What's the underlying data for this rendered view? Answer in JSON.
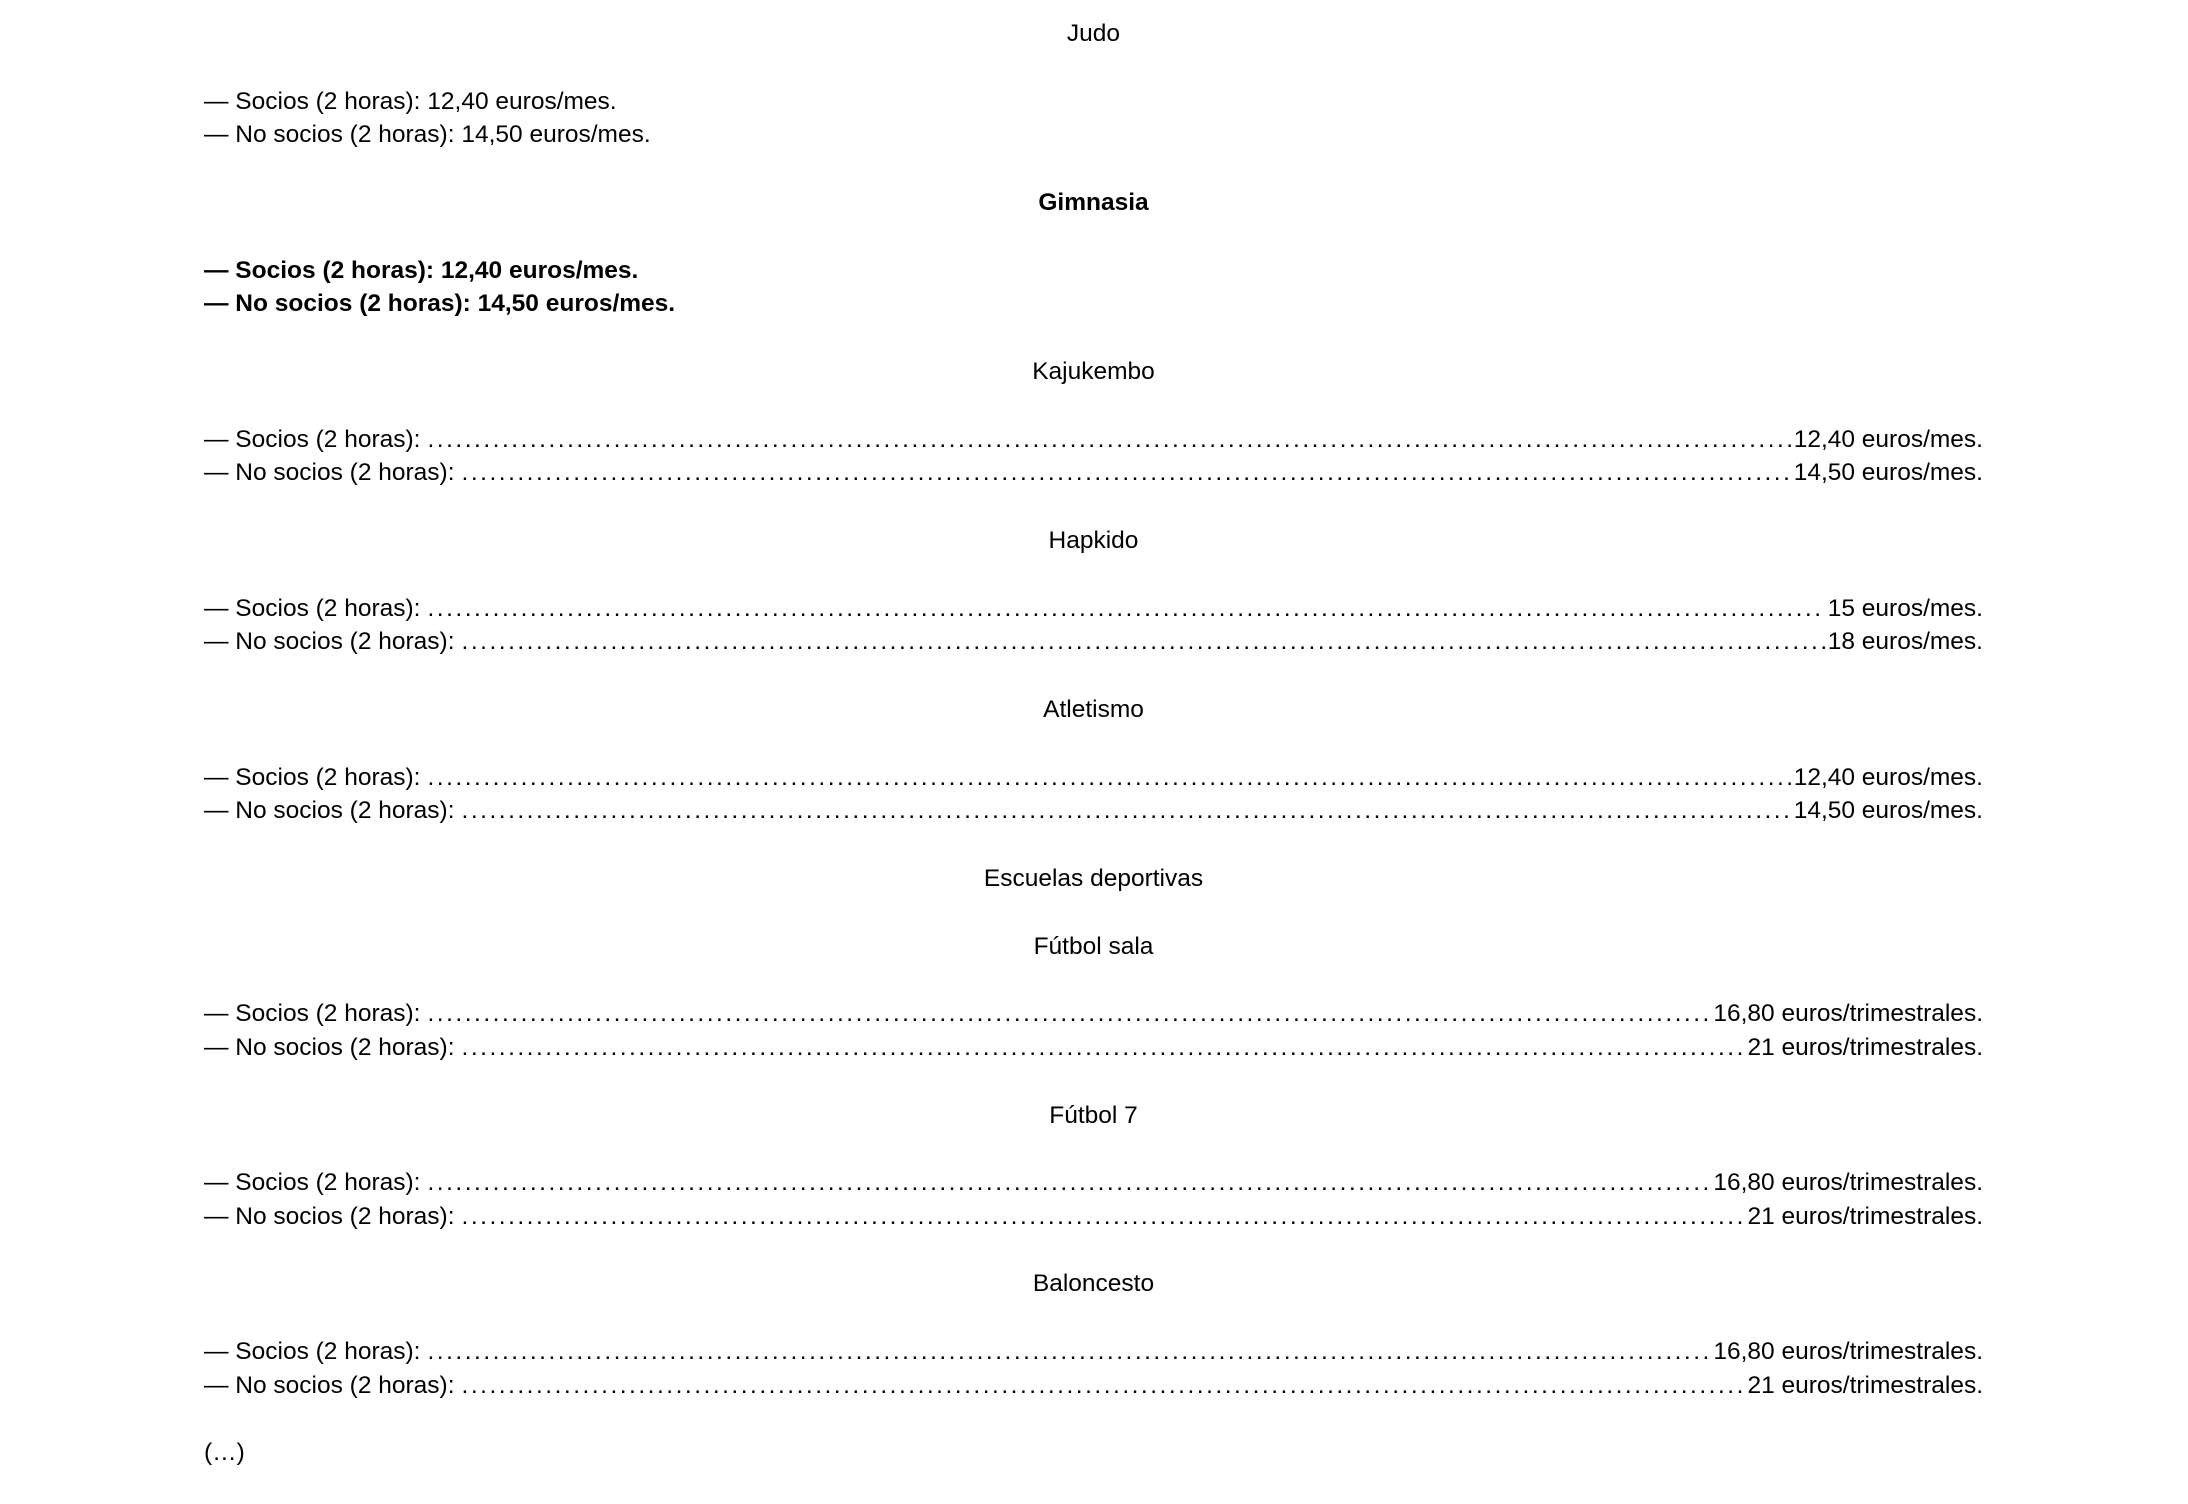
{
  "page": {
    "background_color": "#ffffff",
    "text_color": "#000000"
  },
  "document": {
    "footer_ellipsis": "(…)",
    "sections": [
      {
        "title": "Judo",
        "bold": false,
        "items": [
          {
            "text": "— Socios (2 horas): 12,40 euros/mes."
          },
          {
            "text": "— No socios (2 horas): 14,50 euros/mes."
          }
        ]
      },
      {
        "title": "Gimnasia",
        "bold": true,
        "items": [
          {
            "text": "— Socios (2 horas): 12,40 euros/mes."
          },
          {
            "text": "— No socios (2 horas): 14,50 euros/mes."
          }
        ]
      },
      {
        "title": "Kajukembo",
        "bold": false,
        "items": [
          {
            "label": "— Socios (2 horas):",
            "value": "12,40 euros/mes."
          },
          {
            "label": "— No socios (2 horas):",
            "value": "14,50 euros/mes."
          }
        ]
      },
      {
        "title": "Hapkido",
        "bold": false,
        "items": [
          {
            "label": "— Socios (2 horas):",
            "value": "15 euros/mes."
          },
          {
            "label": "— No socios (2 horas):",
            "value": "18 euros/mes."
          }
        ]
      },
      {
        "title": "Atletismo",
        "bold": false,
        "items": [
          {
            "label": "— Socios (2 horas):",
            "value": "12,40 euros/mes."
          },
          {
            "label": "— No socios (2 horas):",
            "value": "14,50 euros/mes."
          }
        ]
      },
      {
        "title": "Escuelas deportivas",
        "bold": false,
        "items": []
      },
      {
        "title": "Fútbol sala",
        "bold": false,
        "items": [
          {
            "label": "— Socios (2 horas):",
            "value": "16,80 euros/trimestrales."
          },
          {
            "label": "— No socios (2 horas):",
            "value": "21 euros/trimestrales."
          }
        ]
      },
      {
        "title": "Fútbol 7",
        "bold": false,
        "items": [
          {
            "label": "— Socios (2 horas):",
            "value": "16,80 euros/trimestrales."
          },
          {
            "label": "— No socios (2 horas):",
            "value": "21 euros/trimestrales."
          }
        ]
      },
      {
        "title": "Baloncesto",
        "bold": false,
        "items": [
          {
            "label": "— Socios (2 horas):",
            "value": "16,80 euros/trimestrales."
          },
          {
            "label": "— No socios (2 horas):",
            "value": "21 euros/trimestrales."
          }
        ]
      }
    ]
  }
}
